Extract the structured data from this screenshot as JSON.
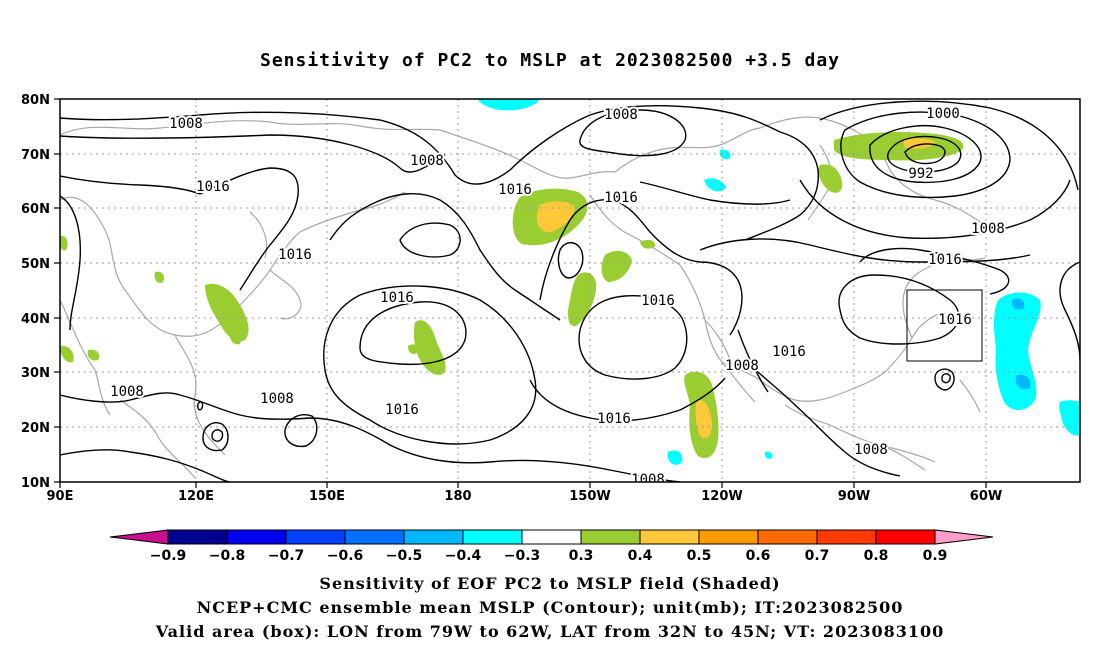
{
  "title": "Sensitivity of PC2 to MSLP at 2023082500 +3.5 day",
  "latitude_labels": [
    "80N",
    "70N",
    "60N",
    "50N",
    "40N",
    "30N",
    "20N",
    "10N"
  ],
  "longitude_labels": [
    "90E",
    "120E",
    "150E",
    "180",
    "150W",
    "120W",
    "90W",
    "60W"
  ],
  "contour_labels": {
    "c1008_a": "1008",
    "c1008_b": "1008",
    "c1008_c": "1008",
    "c1008_d": "1008",
    "c1008_e": "1008",
    "c1008_f": "1008",
    "c1008_g": "1008",
    "c1008_h": "1008",
    "c1016_a": "1016",
    "c1016_b": "1016",
    "c1016_c": "1016",
    "c1016_d": "1016",
    "c1016_e": "1016",
    "c1016_f": "1016",
    "c1016_g": "1016",
    "c1016_h": "1016",
    "c1016_i": "1016",
    "c1016_j": "1016",
    "c1016_k": "1016",
    "c1000": "1000",
    "c992": "992"
  },
  "colorbar": {
    "labels": [
      "−0.9",
      "−0.8",
      "−0.7",
      "−0.6",
      "−0.5",
      "−0.4",
      "−0.3",
      "0.3",
      "0.4",
      "0.5",
      "0.6",
      "0.7",
      "0.8",
      "0.9"
    ],
    "colors": [
      "#000090",
      "#0000f0",
      "#0040ff",
      "#0070ff",
      "#00b8ff",
      "#00ffff",
      "#ffffff",
      "#9acd32",
      "#ffc83a",
      "#ff9a00",
      "#ff6a00",
      "#ff3a00",
      "#ff0000"
    ],
    "low_end_color": "#c8108c",
    "high_end_color": "#ff9ecb"
  },
  "footer": {
    "line1": "Sensitivity of EOF PC2 to MSLP field (Shaded)",
    "line2": "NCEP+CMC ensemble mean MSLP (Contour); unit(mb); IT:2023082500",
    "line3": "Valid area (box): LON from 79W to 62W, LAT from 32N to 45N; VT: 2023083100"
  }
}
